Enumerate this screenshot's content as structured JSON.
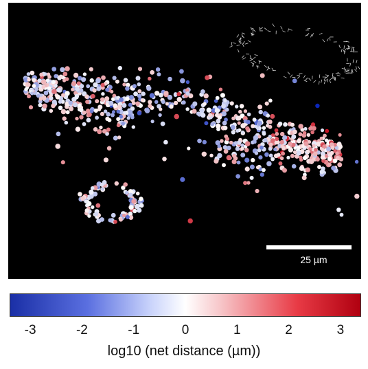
{
  "figure": {
    "scale_bar_text": "25 µm",
    "colorbar": {
      "ticks": [
        "-3",
        "-2",
        "-1",
        "0",
        "1",
        "2",
        "3"
      ],
      "label": "log10 (net distance (µm))",
      "range": [
        -3.4,
        3.4
      ],
      "colors": {
        "low": "#1a2fa6",
        "mid": "#ffffff",
        "high": "#b00010"
      }
    }
  }
}
